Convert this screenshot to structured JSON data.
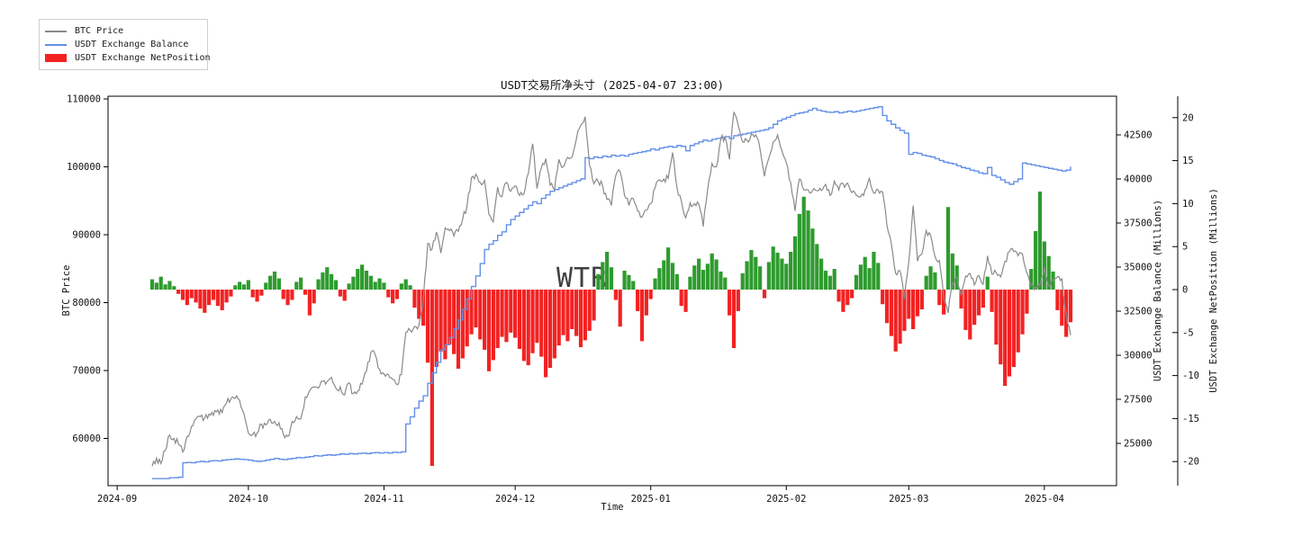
{
  "title": "USDT交易所净头寸 (2025-04-07 23:00)",
  "watermark": "WTR",
  "legend": {
    "items": [
      {
        "label": "BTC Price",
        "type": "line",
        "color": "#8a8a8a"
      },
      {
        "label": "USDT Exchange Balance",
        "type": "line",
        "color": "#6490e8"
      },
      {
        "label": "USDT Exchange NetPosition",
        "type": "patch",
        "color": "#f32222"
      }
    ]
  },
  "colors": {
    "btc_line": "#8a8a8a",
    "balance_line": "#6490e8",
    "netpos_positive": "#2e9b2e",
    "netpos_negative": "#f32222",
    "watermark": "#b0b0b0",
    "spine": "#000000"
  },
  "axes": {
    "x": {
      "label": "Time",
      "ticks": [
        "2024-09",
        "2024-10",
        "2024-11",
        "2024-12",
        "2025-01",
        "2025-02",
        "2025-03",
        "2025-04"
      ]
    },
    "y_left": {
      "label": "BTC Price",
      "ticks": [
        110000,
        100000,
        90000,
        80000,
        70000,
        60000
      ]
    },
    "y_right1": {
      "label": "USDT Exchange Balance (Millions)",
      "ticks": [
        42500,
        40000,
        37500,
        35000,
        32500,
        30000,
        27500,
        25000
      ]
    },
    "y_right2": {
      "label": "USDT Exchange NetPosition (Millions)",
      "ticks": [
        20,
        15,
        10,
        5,
        0,
        -5,
        -10,
        -15,
        -20
      ]
    }
  },
  "chart_data": {
    "type": "line+bar",
    "title": "USDT交易所净头寸 (2025-04-07 23:00)",
    "x_unit": "date",
    "start_date": "2024-09-09",
    "end_date": "2025-04-07",
    "frequency": "daily",
    "x_tick_labels": [
      "2024-09",
      "2024-10",
      "2024-11",
      "2024-12",
      "2025-01",
      "2025-02",
      "2025-03",
      "2025-04"
    ],
    "axis_ranges": {
      "btc_price": [
        53000,
        110400
      ],
      "balance_millions": [
        22500,
        44700
      ],
      "netposition_millions": [
        -22,
        22
      ]
    },
    "legend_position": "upper-left",
    "grid": false,
    "series": [
      {
        "name": "BTC Price",
        "type": "line",
        "axis": "left",
        "color": "#8a8a8a",
        "values": [
          55900,
          57100,
          56300,
          58200,
          60500,
          60000,
          59200,
          58000,
          60300,
          61800,
          62900,
          63200,
          63000,
          63600,
          63400,
          64200,
          63800,
          65200,
          65800,
          65900,
          65600,
          63600,
          60800,
          60600,
          60800,
          62100,
          62000,
          62800,
          62500,
          62300,
          60600,
          60300,
          62500,
          63200,
          62900,
          66100,
          67000,
          67600,
          67400,
          68400,
          68400,
          69000,
          67400,
          67600,
          66400,
          68200,
          66600,
          67000,
          68000,
          69900,
          72700,
          72300,
          70200,
          69500,
          69400,
          68700,
          67900,
          69400,
          75600,
          75900,
          76500,
          76700,
          80400,
          88700,
          87900,
          90400,
          87300,
          91000,
          90600,
          89800,
          90500,
          92300,
          94300,
          98400,
          98900,
          97700,
          98000,
          93000,
          91900,
          97000,
          95600,
          97700,
          96400,
          97200,
          95800,
          96000,
          99000,
          103400,
          96800,
          99900,
          101200,
          97300,
          96600,
          101100,
          100000,
          101400,
          101400,
          104100,
          106100,
          107400,
          100200,
          97500,
          97800,
          97200,
          95200,
          94300,
          98700,
          99300,
          95800,
          94300,
          95300,
          93500,
          92600,
          93600,
          94600,
          96900,
          98100,
          98200,
          98300,
          102100,
          96900,
          95000,
          92500,
          94700,
          94600,
          94500,
          91200,
          96600,
          100500,
          100000,
          104000,
          104400,
          101100,
          108000,
          106100,
          103700,
          103900,
          104800,
          104700,
          102600,
          98600,
          101300,
          103700,
          104700,
          102400,
          100600,
          97700,
          93500,
          98200,
          96600,
          96600,
          96500,
          96500,
          96500,
          97400,
          95800,
          97900,
          96600,
          97500,
          97600,
          96200,
          95800,
          95600,
          96600,
          98300,
          96100,
          96600,
          96300,
          91400,
          88700,
          84300,
          84700,
          80500,
          86000,
          94300,
          86100,
          87200,
          90600,
          89900,
          86800,
          86200,
          80700,
          78500,
          82900,
          83700,
          81100,
          83900,
          84300,
          82600,
          84000,
          82700,
          86900,
          84200,
          84400,
          83800,
          86100,
          87500,
          87500,
          86900,
          87200,
          84400,
          82600,
          82300,
          82500,
          85200,
          82500,
          83200,
          83800,
          83500,
          78200,
          75200
        ]
      },
      {
        "name": "USDT Exchange Balance",
        "type": "step-line",
        "axis": "right1",
        "color": "#6490e8",
        "values": [
          23000,
          23000,
          23000,
          23000,
          23050,
          23050,
          23080,
          23900,
          23920,
          23900,
          23950,
          23980,
          23950,
          24000,
          24020,
          24000,
          24050,
          24080,
          24100,
          24120,
          24100,
          24080,
          24050,
          24000,
          23980,
          24000,
          24050,
          24100,
          24150,
          24100,
          24080,
          24120,
          24150,
          24200,
          24180,
          24220,
          24250,
          24300,
          24280,
          24320,
          24350,
          24330,
          24360,
          24400,
          24380,
          24420,
          24400,
          24430,
          24450,
          24420,
          24460,
          24480,
          24450,
          24480,
          24450,
          24500,
          24480,
          24520,
          26100,
          26500,
          27000,
          27400,
          27700,
          28400,
          29000,
          29600,
          30300,
          30600,
          31000,
          31500,
          32000,
          32600,
          33200,
          33900,
          34500,
          35200,
          36000,
          36300,
          36500,
          36800,
          37000,
          37400,
          37700,
          37900,
          38100,
          38300,
          38500,
          38700,
          38600,
          38900,
          39100,
          39300,
          39400,
          39500,
          39600,
          39700,
          39800,
          39900,
          40000,
          41200,
          41150,
          41250,
          41200,
          41300,
          41250,
          41350,
          41300,
          41350,
          41300,
          41400,
          41450,
          41500,
          41550,
          41600,
          41700,
          41650,
          41750,
          41800,
          41850,
          41800,
          41900,
          41850,
          41600,
          41900,
          42000,
          42100,
          42200,
          42150,
          42250,
          42300,
          42350,
          42400,
          42300,
          42450,
          42500,
          42550,
          42600,
          42650,
          42700,
          42750,
          42800,
          42900,
          43100,
          43300,
          43400,
          43500,
          43600,
          43700,
          43750,
          43800,
          43900,
          44000,
          43900,
          43850,
          43800,
          43780,
          43820,
          43750,
          43800,
          43850,
          43800,
          43850,
          43900,
          43950,
          44000,
          44050,
          44100,
          43600,
          43300,
          43100,
          42900,
          42750,
          42600,
          41400,
          41500,
          41450,
          41350,
          41300,
          41250,
          41150,
          41050,
          40950,
          40900,
          40850,
          40750,
          40650,
          40600,
          40500,
          40450,
          40350,
          40300,
          40650,
          40200,
          40100,
          39950,
          39800,
          39700,
          39850,
          40000,
          40900,
          40850,
          40800,
          40750,
          40700,
          40650,
          40600,
          40550,
          40500,
          40450,
          40500,
          40700
        ]
      },
      {
        "name": "USDT Exchange NetPosition",
        "type": "bar",
        "axis": "right2",
        "color_positive": "#2e9b2e",
        "color_negative": "#f32222",
        "values": [
          1.2,
          0.8,
          1.5,
          0.6,
          1.0,
          0.4,
          -0.5,
          -1.2,
          -1.8,
          -1.0,
          -1.5,
          -2.2,
          -2.7,
          -1.8,
          -1.2,
          -1.9,
          -2.4,
          -1.5,
          -0.8,
          0.5,
          0.9,
          0.6,
          1.1,
          -0.9,
          -1.4,
          -0.7,
          0.8,
          1.6,
          2.1,
          1.3,
          -1.1,
          -1.8,
          -1.2,
          0.9,
          1.4,
          -0.6,
          -3.0,
          -1.6,
          1.2,
          2.0,
          2.6,
          1.8,
          1.1,
          -0.8,
          -1.3,
          0.7,
          1.5,
          2.4,
          2.9,
          2.2,
          1.6,
          0.9,
          1.3,
          0.8,
          -0.9,
          -1.6,
          -1.1,
          0.7,
          1.2,
          0.5,
          -2.1,
          -3.4,
          -4.2,
          -8.5,
          -20.5,
          -9.0,
          -7.2,
          -8.1,
          -6.4,
          -7.5,
          -9.2,
          -8.0,
          -6.6,
          -5.2,
          -4.4,
          -5.8,
          -7.0,
          -9.5,
          -8.2,
          -6.8,
          -5.5,
          -6.1,
          -5.0,
          -5.6,
          -6.9,
          -8.3,
          -8.8,
          -7.4,
          -6.2,
          -7.8,
          -10.2,
          -9.1,
          -8.0,
          -6.5,
          -5.3,
          -6.0,
          -4.6,
          -5.4,
          -6.7,
          -5.9,
          -4.8,
          -3.6,
          1.8,
          3.2,
          4.4,
          2.6,
          -1.2,
          -4.3,
          2.2,
          1.7,
          1.0,
          -2.5,
          -6.0,
          -3.0,
          -1.1,
          1.3,
          2.5,
          3.4,
          4.9,
          3.1,
          1.8,
          -1.9,
          -2.6,
          1.5,
          2.8,
          3.6,
          2.3,
          3.0,
          4.2,
          3.5,
          2.1,
          1.4,
          -3.0,
          -6.8,
          -2.5,
          1.9,
          3.3,
          4.6,
          3.8,
          2.7,
          -1.0,
          3.2,
          5.0,
          4.3,
          3.6,
          3.0,
          4.4,
          6.2,
          8.8,
          10.8,
          9.2,
          7.1,
          5.3,
          3.6,
          2.2,
          1.6,
          2.4,
          -1.4,
          -2.6,
          -1.8,
          -1.0,
          1.7,
          2.9,
          3.8,
          2.5,
          4.4,
          3.1,
          -1.7,
          -3.9,
          -5.4,
          -7.2,
          -6.3,
          -4.8,
          -3.4,
          -4.6,
          -3.1,
          -2.3,
          1.6,
          2.7,
          2.0,
          -1.8,
          -2.9,
          9.6,
          4.2,
          2.8,
          -2.2,
          -4.7,
          -5.8,
          -4.1,
          -3.0,
          -2.1,
          1.5,
          -2.6,
          -6.4,
          -8.7,
          -11.2,
          -10.1,
          -9.0,
          -7.3,
          -5.2,
          -2.8,
          2.4,
          6.8,
          11.4,
          5.6,
          3.9,
          2.1,
          -2.4,
          -4.2,
          -5.5,
          -3.8
        ]
      }
    ]
  }
}
